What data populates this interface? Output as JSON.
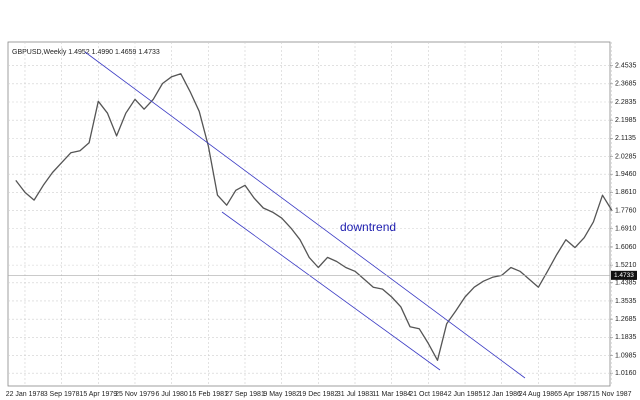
{
  "chart_data": {
    "type": "line",
    "title": "GBPUSD,Weekly  1.4952 1.4990 1.4659 1.4733",
    "annotation": "downtrend",
    "categories": [
      null,
      "22 Jan 1978",
      null,
      null,
      null,
      "3 Sep 1978",
      null,
      null,
      null,
      "15 Apr 1979",
      null,
      null,
      null,
      "25 Nov 1979",
      null,
      null,
      null,
      "6 Jul 1980",
      null,
      null,
      null,
      "15 Feb 1981",
      null,
      null,
      null,
      "27 Sep 1981",
      null,
      null,
      null,
      "9 May 1982",
      null,
      null,
      null,
      "19 Dec 1982",
      null,
      null,
      null,
      "31 Jul 1983",
      null,
      null,
      null,
      "11 Mar 1984",
      null,
      null,
      null,
      "21 Oct 1984",
      null,
      null,
      null,
      "2 Jun 1985",
      null,
      null,
      null,
      "12 Jan 1986",
      null,
      null,
      null,
      "24 Aug 1986",
      null,
      null,
      null,
      "5 Apr 1987",
      null,
      null,
      null,
      "15 Nov 1987"
    ],
    "series": [
      {
        "name": "GBPUSD",
        "color": "#555555",
        "values": [
          1.917,
          1.861,
          1.825,
          1.894,
          1.954,
          2.0,
          2.046,
          2.056,
          2.093,
          2.287,
          2.231,
          2.125,
          2.231,
          2.296,
          2.25,
          2.296,
          2.37,
          2.402,
          2.416,
          2.333,
          2.24,
          2.079,
          1.848,
          1.801,
          1.871,
          1.894,
          1.834,
          1.788,
          1.769,
          1.741,
          1.695,
          1.64,
          1.557,
          1.51,
          1.557,
          1.538,
          1.51,
          1.492,
          1.455,
          1.418,
          1.409,
          1.372,
          1.326,
          1.233,
          1.224,
          1.155,
          1.076,
          1.247,
          1.307,
          1.372,
          1.418,
          1.446,
          1.464,
          1.473,
          1.51,
          1.492,
          1.455,
          1.418,
          1.492,
          1.57,
          1.64,
          1.603,
          1.649,
          1.723,
          1.848,
          1.778
        ]
      }
    ],
    "last_price": 1.4733,
    "ylim": [
      0.956,
      2.564
    ],
    "yticks": [
      {
        "value": 2.4535,
        "label": "2.4535"
      },
      {
        "value": 2.3685,
        "label": "2.3685"
      },
      {
        "value": 2.2835,
        "label": "2.2835"
      },
      {
        "value": 2.1985,
        "label": "2.1985"
      },
      {
        "value": 2.1135,
        "label": "2.1135"
      },
      {
        "value": 2.0285,
        "label": "2.0285"
      },
      {
        "value": 1.946,
        "label": "1.9460"
      },
      {
        "value": 1.861,
        "label": "1.8610"
      },
      {
        "value": 1.776,
        "label": "1.7760"
      },
      {
        "value": 1.691,
        "label": "1.6910"
      },
      {
        "value": 1.606,
        "label": "1.6060"
      },
      {
        "value": 1.521,
        "label": "1.5210"
      },
      {
        "value": 1.4385,
        "label": "1.4385"
      },
      {
        "value": 1.3535,
        "label": "1.3535"
      },
      {
        "value": 1.2685,
        "label": "1.2685"
      },
      {
        "value": 1.1835,
        "label": "1.1835"
      },
      {
        "value": 1.0985,
        "label": "1.0985"
      },
      {
        "value": 1.016,
        "label": "1.0160"
      }
    ],
    "grid": true
  }
}
